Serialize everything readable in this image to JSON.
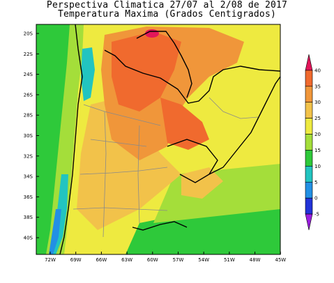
{
  "title": {
    "line1": "Perspectiva Climatica 27/07 al 2/08 de 2017",
    "line2": "Temperatura Maxima (Grados Centigrados)"
  },
  "map": {
    "lat_labels": [
      "20S",
      "22S",
      "24S",
      "26S",
      "28S",
      "30S",
      "32S",
      "34S",
      "36S",
      "38S",
      "40S"
    ],
    "lon_labels": [
      "72W",
      "69W",
      "66W",
      "63W",
      "60W",
      "57W",
      "54W",
      "51W",
      "48W",
      "45W"
    ]
  },
  "colorbar": {
    "labels": [
      "40",
      "35",
      "30",
      "25",
      "20",
      "15",
      "10",
      "5",
      "0",
      "-5"
    ],
    "colors": [
      "#e3165a",
      "#f06a2e",
      "#f0963a",
      "#f2c24a",
      "#eeea40",
      "#a4de3a",
      "#2ec93a",
      "#22c4c0",
      "#2290e4",
      "#2233d8",
      "#9a1ee0"
    ]
  }
}
